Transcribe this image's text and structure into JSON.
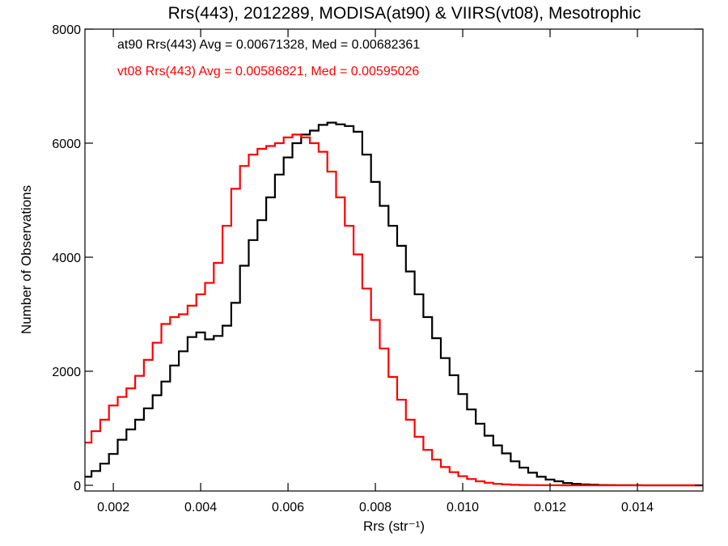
{
  "chart_data": {
    "type": "line",
    "title": "Rrs(443), 2012289, MODISA(at90) & VIIRS(vt08), Mesotrophic",
    "xlabel": "Rrs (str⁻¹)",
    "ylabel": "Number of Observations",
    "xlim": [
      0.00135,
      0.0155
    ],
    "ylim": [
      -100,
      8000
    ],
    "xticks": [
      "0.002",
      "0.004",
      "0.006",
      "0.008",
      "0.010",
      "0.012",
      "0.014"
    ],
    "xtick_values": [
      0.002,
      0.004,
      0.006,
      0.008,
      0.01,
      0.012,
      0.014
    ],
    "yticks": [
      "0",
      "2000",
      "4000",
      "6000",
      "8000"
    ],
    "ytick_values": [
      0,
      2000,
      4000,
      6000,
      8000
    ],
    "grid": false,
    "legend_placement": "top-left",
    "series": [
      {
        "name": "at90 Rrs(443) Avg = 0.00671328, Med = 0.00682361",
        "color": "#000000",
        "x": [
          0.00135,
          0.0015,
          0.0017,
          0.0019,
          0.0021,
          0.0023,
          0.0025,
          0.0027,
          0.0029,
          0.0031,
          0.0033,
          0.0035,
          0.0037,
          0.0039,
          0.0041,
          0.0043,
          0.0045,
          0.0047,
          0.0049,
          0.0051,
          0.0053,
          0.0055,
          0.0057,
          0.0059,
          0.0061,
          0.0063,
          0.0065,
          0.0067,
          0.0069,
          0.0071,
          0.0073,
          0.0075,
          0.0077,
          0.0079,
          0.0081,
          0.0083,
          0.0085,
          0.0087,
          0.0089,
          0.0091,
          0.0093,
          0.0095,
          0.0097,
          0.0099,
          0.0101,
          0.0103,
          0.0105,
          0.0107,
          0.0109,
          0.0111,
          0.0113,
          0.0115,
          0.0117,
          0.0119,
          0.0121,
          0.0123,
          0.0125,
          0.0127,
          0.0129,
          0.0131,
          0.0133,
          0.0135,
          0.0137,
          0.0139,
          0.0141,
          0.0143,
          0.0145,
          0.0147,
          0.0149,
          0.0151,
          0.0155
        ],
        "y": [
          150,
          250,
          380,
          550,
          800,
          980,
          1150,
          1350,
          1580,
          1820,
          2100,
          2350,
          2600,
          2680,
          2560,
          2620,
          2800,
          3200,
          3850,
          4300,
          4650,
          5050,
          5450,
          5750,
          6000,
          6150,
          6220,
          6320,
          6360,
          6330,
          6300,
          6200,
          5800,
          5320,
          4900,
          4550,
          4200,
          3750,
          3350,
          2950,
          2580,
          2230,
          1930,
          1600,
          1330,
          1080,
          870,
          700,
          560,
          420,
          310,
          220,
          150,
          100,
          70,
          40,
          25,
          15,
          10,
          5,
          3,
          2,
          1,
          1,
          0,
          0,
          0,
          0,
          0,
          0,
          0
        ]
      },
      {
        "name": "vt08 Rrs(443) Avg = 0.00586821, Med = 0.00595026",
        "color": "#ff0000",
        "x": [
          0.00135,
          0.0015,
          0.0017,
          0.0019,
          0.0021,
          0.0023,
          0.0025,
          0.0027,
          0.0029,
          0.0031,
          0.0033,
          0.0035,
          0.0037,
          0.0039,
          0.0041,
          0.0043,
          0.0045,
          0.0047,
          0.0049,
          0.0051,
          0.0053,
          0.0055,
          0.0057,
          0.0059,
          0.0061,
          0.0063,
          0.0065,
          0.0067,
          0.0069,
          0.0071,
          0.0073,
          0.0075,
          0.0077,
          0.0079,
          0.0081,
          0.0083,
          0.0085,
          0.0087,
          0.0089,
          0.0091,
          0.0093,
          0.0095,
          0.0097,
          0.0099,
          0.0101,
          0.0103,
          0.0105,
          0.0107,
          0.0109,
          0.0111,
          0.0113,
          0.0115,
          0.0117,
          0.0119,
          0.0121,
          0.0123,
          0.0125,
          0.0127,
          0.0129,
          0.0131,
          0.0133,
          0.0135,
          0.0137,
          0.0139,
          0.0141,
          0.0143,
          0.0145,
          0.0147,
          0.0149,
          0.0151,
          0.0155
        ],
        "y": [
          750,
          950,
          1150,
          1400,
          1550,
          1700,
          1920,
          2200,
          2500,
          2830,
          2950,
          3000,
          3150,
          3350,
          3550,
          3900,
          4550,
          5200,
          5600,
          5800,
          5900,
          5950,
          6000,
          6100,
          6150,
          6100,
          6000,
          5850,
          5500,
          5050,
          4550,
          4050,
          3450,
          2900,
          2400,
          1900,
          1500,
          1150,
          850,
          620,
          450,
          320,
          230,
          160,
          110,
          70,
          45,
          25,
          15,
          8,
          5,
          3,
          2,
          1,
          1,
          0,
          0,
          0,
          0,
          0,
          0,
          0,
          0,
          0,
          0,
          0,
          0,
          0,
          0,
          0,
          0
        ]
      }
    ]
  }
}
